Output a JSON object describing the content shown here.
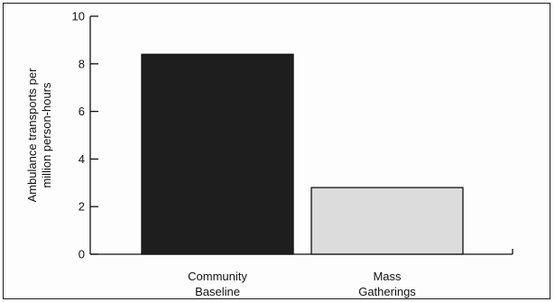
{
  "chart_data": {
    "type": "bar",
    "title": "",
    "xlabel": "",
    "ylabel": "Ambulance transports per million person-hours",
    "ylabel_lines": [
      "Ambulance transports per",
      "million person-hours"
    ],
    "categories": [
      "Community Baseline",
      "Mass Gatherings"
    ],
    "category_lines": [
      [
        "Community",
        "Baseline"
      ],
      [
        "Mass",
        "Gatherings"
      ]
    ],
    "values": [
      8.4,
      2.8
    ],
    "bar_colors": [
      "#1e1e1e",
      "#dcdcdc"
    ],
    "ylim": [
      0,
      10
    ],
    "yticks": [
      0,
      2,
      4,
      6,
      8,
      10
    ],
    "grid": false,
    "legend": "none"
  }
}
